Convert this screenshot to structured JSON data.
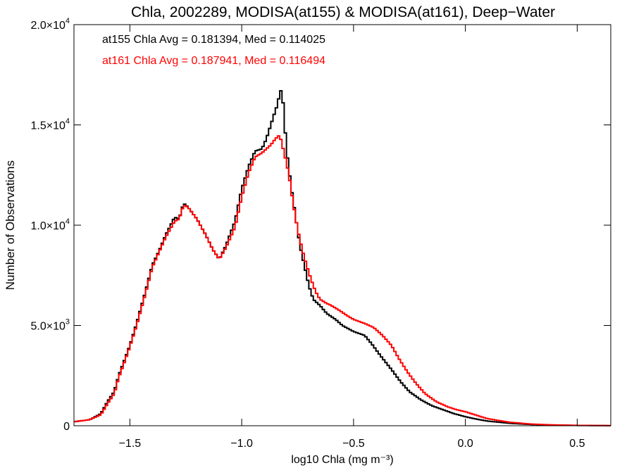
{
  "chart_data": {
    "type": "histogram",
    "title": "Chla, 2002289, MODISA(at155) & MODISA(at161), Deep−Water",
    "xlabel": "log10 Chla (mg m⁻³)",
    "ylabel": "Number of Observations",
    "xlim": [
      -1.75,
      0.65
    ],
    "ylim": [
      0,
      20000
    ],
    "x_ticks": [
      -1.5,
      -1.0,
      -0.5,
      0.0,
      0.5
    ],
    "x_tick_labels": [
      "−1.5",
      "−1.0",
      "−0.5",
      "0.0",
      "0.5"
    ],
    "y_ticks": [
      0,
      5000,
      10000,
      15000,
      20000
    ],
    "y_tick_labels": [
      {
        "mantissa": "0",
        "exp": ""
      },
      {
        "mantissa": "5.0×10",
        "exp": "3"
      },
      {
        "mantissa": "1.0×10",
        "exp": "4"
      },
      {
        "mantissa": "1.5×10",
        "exp": "4"
      },
      {
        "mantissa": "2.0×10",
        "exp": "4"
      }
    ],
    "grid": false,
    "bin_width": 0.01,
    "annotations": [
      {
        "text": "at155 Chla Avg = 0.181394, Med = 0.114025",
        "color": "#000000"
      },
      {
        "text": "at161 Chla Avg = 0.187941, Med = 0.116494",
        "color": "#ff0000"
      }
    ],
    "series": [
      {
        "color": "#000000",
        "points": [
          [
            -1.75,
            200
          ],
          [
            -1.68,
            300
          ],
          [
            -1.63,
            600
          ],
          [
            -1.6,
            1200
          ],
          [
            -1.57,
            1700
          ],
          [
            -1.55,
            2500
          ],
          [
            -1.52,
            3400
          ],
          [
            -1.5,
            4000
          ],
          [
            -1.47,
            5100
          ],
          [
            -1.43,
            6700
          ],
          [
            -1.4,
            8000
          ],
          [
            -1.37,
            8700
          ],
          [
            -1.34,
            9500
          ],
          [
            -1.3,
            10400
          ],
          [
            -1.28,
            10300
          ],
          [
            -1.26,
            11100
          ],
          [
            -1.24,
            10900
          ],
          [
            -1.2,
            10300
          ],
          [
            -1.16,
            9500
          ],
          [
            -1.13,
            8800
          ],
          [
            -1.1,
            8300
          ],
          [
            -1.07,
            9000
          ],
          [
            -1.03,
            10200
          ],
          [
            -1.0,
            11800
          ],
          [
            -0.97,
            12900
          ],
          [
            -0.94,
            13700
          ],
          [
            -0.91,
            13800
          ],
          [
            -0.89,
            14300
          ],
          [
            -0.87,
            15000
          ],
          [
            -0.85,
            15700
          ],
          [
            -0.84,
            16000
          ],
          [
            -0.83,
            16600
          ],
          [
            -0.82,
            16800
          ],
          [
            -0.81,
            15400
          ],
          [
            -0.8,
            13800
          ],
          [
            -0.78,
            12000
          ],
          [
            -0.76,
            10500
          ],
          [
            -0.74,
            9000
          ],
          [
            -0.72,
            8000
          ],
          [
            -0.7,
            7000
          ],
          [
            -0.68,
            6300
          ],
          [
            -0.65,
            6000
          ],
          [
            -0.62,
            5600
          ],
          [
            -0.58,
            5300
          ],
          [
            -0.55,
            5000
          ],
          [
            -0.5,
            4700
          ],
          [
            -0.45,
            4500
          ],
          [
            -0.42,
            4100
          ],
          [
            -0.38,
            3500
          ],
          [
            -0.33,
            2800
          ],
          [
            -0.29,
            2200
          ],
          [
            -0.25,
            1700
          ],
          [
            -0.2,
            1300
          ],
          [
            -0.15,
            1000
          ],
          [
            -0.1,
            800
          ],
          [
            -0.05,
            600
          ],
          [
            0.0,
            450
          ],
          [
            0.05,
            330
          ],
          [
            0.1,
            230
          ],
          [
            0.2,
            120
          ],
          [
            0.3,
            60
          ],
          [
            0.4,
            30
          ],
          [
            0.5,
            15
          ],
          [
            0.65,
            5
          ]
        ]
      },
      {
        "color": "#ff0000",
        "points": [
          [
            -1.75,
            200
          ],
          [
            -1.68,
            300
          ],
          [
            -1.63,
            550
          ],
          [
            -1.6,
            1100
          ],
          [
            -1.57,
            1600
          ],
          [
            -1.55,
            2400
          ],
          [
            -1.52,
            3300
          ],
          [
            -1.5,
            3950
          ],
          [
            -1.47,
            5000
          ],
          [
            -1.43,
            6600
          ],
          [
            -1.4,
            7900
          ],
          [
            -1.37,
            8650
          ],
          [
            -1.34,
            9400
          ],
          [
            -1.3,
            10200
          ],
          [
            -1.28,
            10300
          ],
          [
            -1.26,
            11000
          ],
          [
            -1.24,
            10900
          ],
          [
            -1.2,
            10300
          ],
          [
            -1.16,
            9500
          ],
          [
            -1.13,
            8800
          ],
          [
            -1.1,
            8300
          ],
          [
            -1.07,
            8900
          ],
          [
            -1.03,
            9900
          ],
          [
            -1.0,
            11400
          ],
          [
            -0.97,
            12600
          ],
          [
            -0.94,
            13400
          ],
          [
            -0.91,
            13600
          ],
          [
            -0.89,
            13800
          ],
          [
            -0.87,
            14000
          ],
          [
            -0.85,
            14300
          ],
          [
            -0.83,
            14500
          ],
          [
            -0.81,
            13600
          ],
          [
            -0.79,
            12600
          ],
          [
            -0.77,
            11100
          ],
          [
            -0.75,
            9800
          ],
          [
            -0.73,
            8800
          ],
          [
            -0.71,
            8000
          ],
          [
            -0.69,
            7300
          ],
          [
            -0.67,
            6700
          ],
          [
            -0.65,
            6300
          ],
          [
            -0.62,
            6100
          ],
          [
            -0.6,
            6000
          ],
          [
            -0.57,
            5800
          ],
          [
            -0.53,
            5500
          ],
          [
            -0.5,
            5300
          ],
          [
            -0.45,
            5100
          ],
          [
            -0.41,
            4900
          ],
          [
            -0.37,
            4500
          ],
          [
            -0.33,
            4000
          ],
          [
            -0.3,
            3400
          ],
          [
            -0.26,
            2700
          ],
          [
            -0.22,
            2100
          ],
          [
            -0.18,
            1600
          ],
          [
            -0.13,
            1200
          ],
          [
            -0.08,
            950
          ],
          [
            -0.04,
            800
          ],
          [
            0.0,
            700
          ],
          [
            0.05,
            520
          ],
          [
            0.1,
            350
          ],
          [
            0.2,
            170
          ],
          [
            0.3,
            80
          ],
          [
            0.4,
            40
          ],
          [
            0.5,
            20
          ],
          [
            0.65,
            5
          ]
        ]
      }
    ]
  }
}
